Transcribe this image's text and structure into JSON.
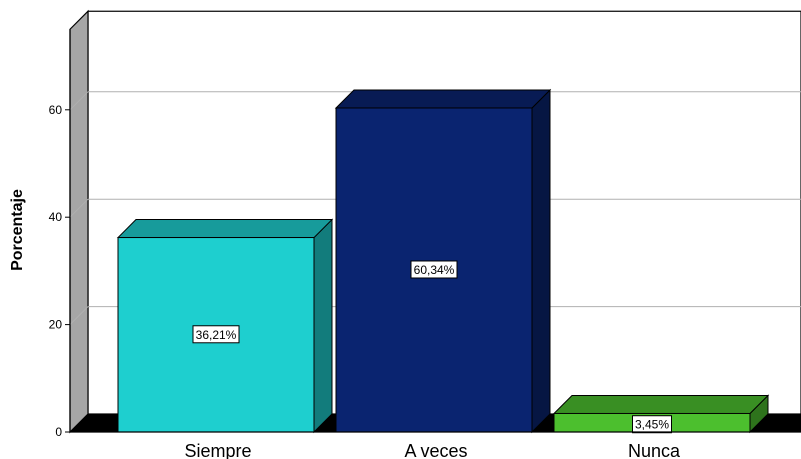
{
  "chart_data": {
    "type": "bar",
    "title": "",
    "xlabel": "",
    "ylabel": "Porcentaje",
    "ylim": [
      0,
      75
    ],
    "yticks": [
      0,
      20,
      40,
      60
    ],
    "grid": true,
    "categories": [
      "Siempre",
      "A veces",
      "Nunca"
    ],
    "values": [
      36.21,
      60.34,
      3.45
    ],
    "data_labels": [
      "36,21%",
      "60,34%",
      "3,45%"
    ],
    "colors": [
      "#1ecfcf",
      "#0a2470",
      "#4cbf2e"
    ]
  }
}
